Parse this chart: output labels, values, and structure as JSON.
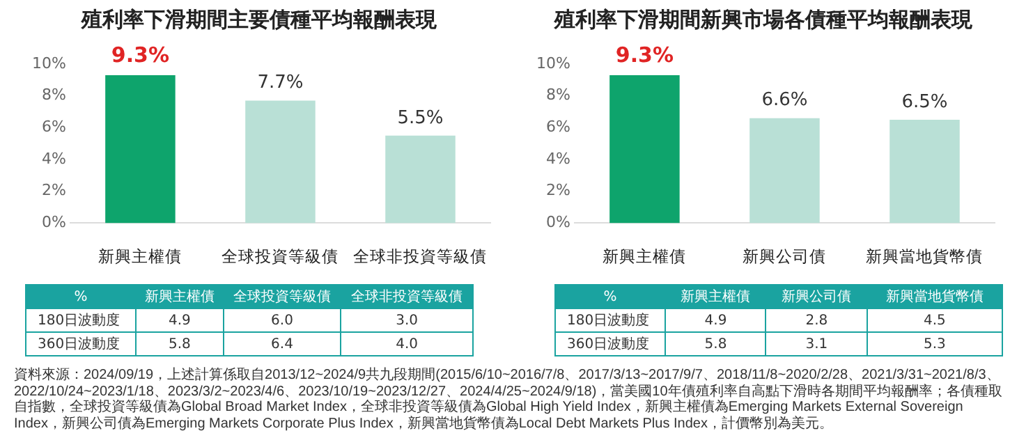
{
  "chart_data": [
    {
      "type": "bar",
      "title": "殖利率下滑期間主要債種平均報酬表現",
      "categories": [
        "新興主權債",
        "全球投資等級債",
        "全球非投資等級債"
      ],
      "values": [
        9.3,
        7.7,
        5.5
      ],
      "colors": [
        "#0ea46c",
        "#b9e0d6",
        "#b9e0d6"
      ],
      "value_labels": [
        "9.3%",
        "7.7%",
        "5.5%"
      ],
      "ylim": [
        0,
        10
      ],
      "yticks": [
        {
          "value": 0,
          "label": "0%"
        },
        {
          "value": 2,
          "label": "2%"
        },
        {
          "value": 4,
          "label": "4%"
        },
        {
          "value": 6,
          "label": "6%"
        },
        {
          "value": 8,
          "label": "8%"
        },
        {
          "value": 10,
          "label": "10%"
        }
      ],
      "grid": false,
      "legend": false
    },
    {
      "type": "bar",
      "title": "殖利率下滑期間新興市場各債種平均報酬表現",
      "categories": [
        "新興主權債",
        "新興公司債",
        "新興當地貨幣債"
      ],
      "values": [
        9.3,
        6.6,
        6.5
      ],
      "colors": [
        "#0ea46c",
        "#b9e0d6",
        "#b9e0d6"
      ],
      "value_labels": [
        "9.3%",
        "6.6%",
        "6.5%"
      ],
      "ylim": [
        0,
        10
      ],
      "yticks": [
        {
          "value": 0,
          "label": "0%"
        },
        {
          "value": 2,
          "label": "2%"
        },
        {
          "value": 4,
          "label": "4%"
        },
        {
          "value": 6,
          "label": "6%"
        },
        {
          "value": 8,
          "label": "8%"
        },
        {
          "value": 10,
          "label": "10%"
        }
      ],
      "grid": false,
      "legend": false
    },
    {
      "type": "heatmap",
      "ylabel": "%",
      "categories": [
        "新興主權債",
        "全球投資等級債",
        "全球非投資等級債"
      ],
      "y_categories": [
        "180日波動度",
        "360日波動度"
      ],
      "cells": [
        [
          4.9,
          6.0,
          3.0
        ],
        [
          5.8,
          6.4,
          4.0
        ]
      ],
      "cell_labels": [
        [
          "4.9",
          "6.0",
          "3.0"
        ],
        [
          "5.8",
          "6.4",
          "4.0"
        ]
      ],
      "data_labels": true
    },
    {
      "type": "heatmap",
      "ylabel": "%",
      "categories": [
        "新興主權債",
        "新興公司債",
        "新興當地貨幣債"
      ],
      "y_categories": [
        "180日波動度",
        "360日波動度"
      ],
      "cells": [
        [
          4.9,
          2.8,
          4.5
        ],
        [
          5.8,
          3.1,
          5.3
        ]
      ],
      "data_labels": true,
      "annotations": [
        "資料來源：2024/09/19，上述計算係取自2013/12~2024/9共九段期間(2015/6/10~2016/7/8、2017/3/13~2017/9/7、2018/11/8~2020/2/28、2021/3/31~2021/8/3、2022/10/24~2023/1/18、2023/3/2~2023/4/6、2023/10/19~2023/12/27、2024/4/25~2024/9/18)，當美國10年債殖利率自高點下滑時各期間平均報酬率；各債種取自指數，全球投資等級債為Global Broad Market Index，全球非投資等級債為Global High Yield Index，新興主權債為Emerging Markets External Sovereign Index，新興公司債為Emerging Markets Corporate Plus Index，新興當地貨幣債為Local Debt Markets Plus Index，計價幣別為美元。"
      ]
    }
  ]
}
